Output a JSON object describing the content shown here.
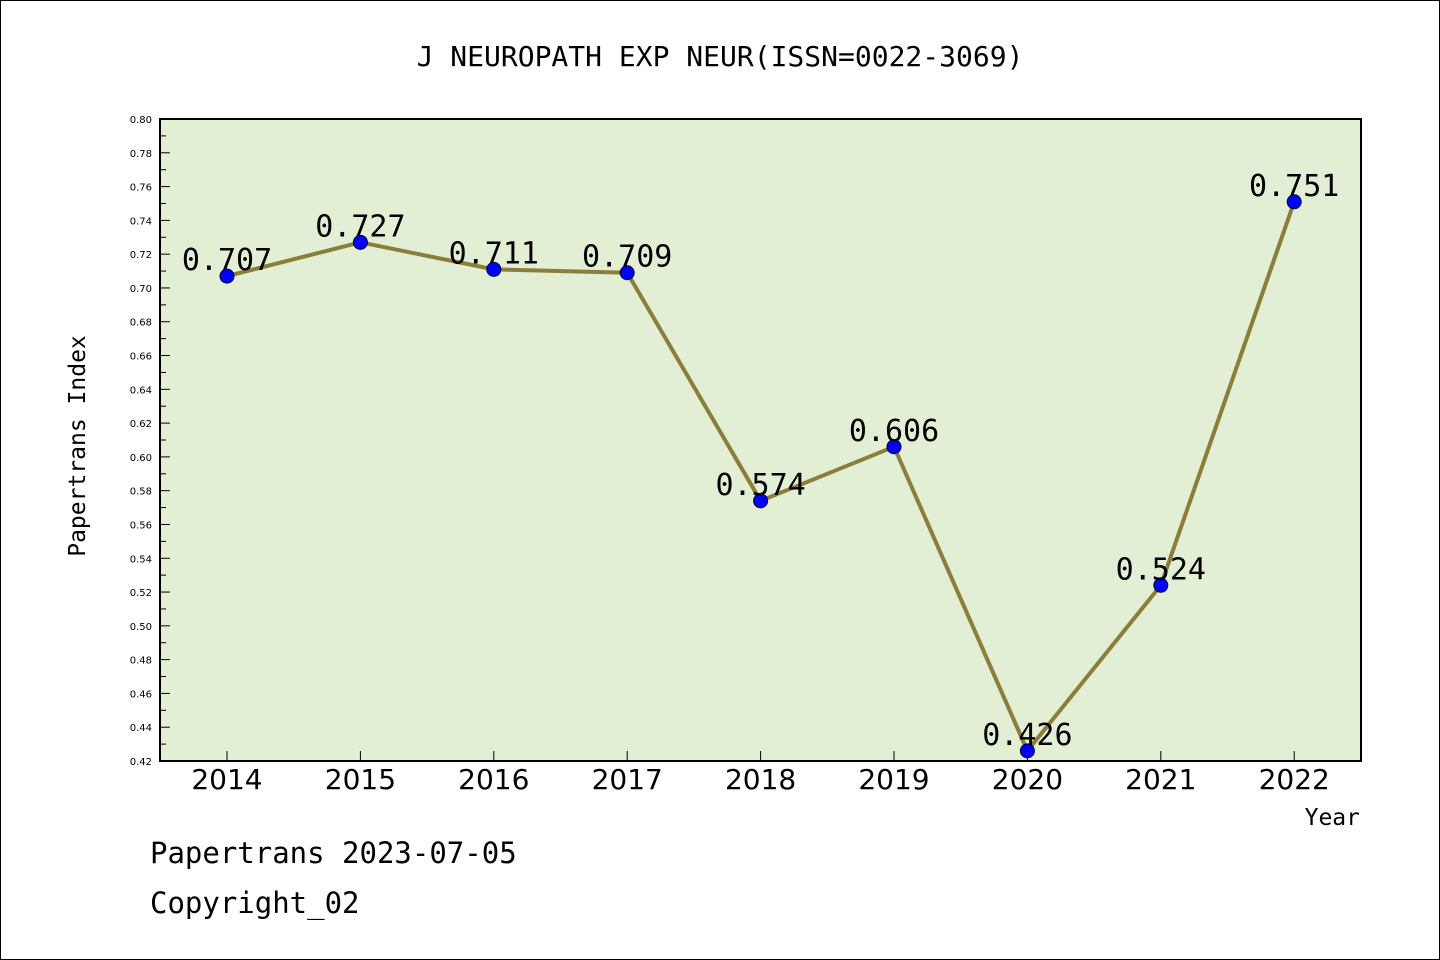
{
  "chart_data": {
    "type": "line",
    "title": "J NEUROPATH EXP NEUR(ISSN=0022-3069)",
    "xlabel": "Year",
    "ylabel": "Papertrans Index",
    "categories": [
      "2014",
      "2015",
      "2016",
      "2017",
      "2018",
      "2019",
      "2020",
      "2021",
      "2022"
    ],
    "values": [
      0.707,
      0.727,
      0.711,
      0.709,
      0.574,
      0.606,
      0.426,
      0.524,
      0.751
    ],
    "data_labels": [
      "0.707",
      "0.727",
      "0.711",
      "0.709",
      "0.574",
      "0.606",
      "0.426",
      "0.524",
      "0.751"
    ],
    "ylim": [
      0.42,
      0.8
    ],
    "yticks": [
      "0.42",
      "0.44",
      "0.46",
      "0.48",
      "0.50",
      "0.52",
      "0.54",
      "0.56",
      "0.58",
      "0.60",
      "0.62",
      "0.64",
      "0.66",
      "0.68",
      "0.70",
      "0.72",
      "0.74",
      "0.76",
      "0.78",
      "0.80"
    ],
    "grid": false,
    "legend": "none",
    "colors": {
      "plot_background": "#e2efd4",
      "line": "#8b7d3a",
      "marker": "#0000ff",
      "axis": "#000000"
    }
  },
  "footer": {
    "line1": "Papertrans 2023-07-05",
    "line2": "Copyright_02"
  }
}
